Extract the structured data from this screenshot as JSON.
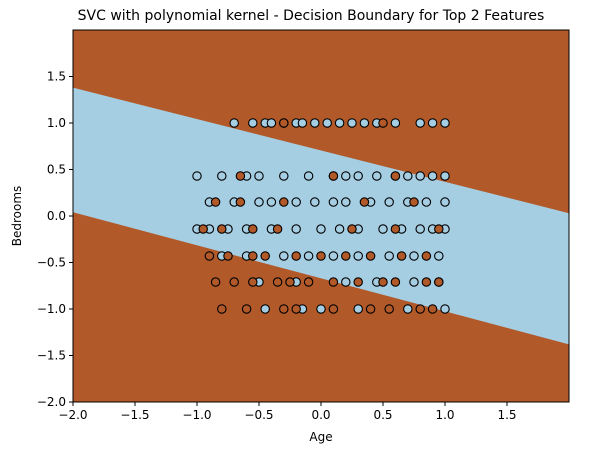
{
  "chart_data": {
    "type": "scatter",
    "title": "SVC with polynomial kernel - Decision Boundary for Top 2 Features",
    "xlabel": "Age",
    "ylabel": "Bedrooms",
    "xlim": [
      -2.0,
      2.0
    ],
    "ylim": [
      -2.0,
      2.0
    ],
    "x_ticks": [
      -2.0,
      -1.5,
      -1.0,
      -0.5,
      0.0,
      0.5,
      1.0,
      1.5
    ],
    "x_tick_labels": [
      "−2.0",
      "−1.5",
      "−1.0",
      "−0.5",
      "0.0",
      "0.5",
      "1.0",
      "1.5"
    ],
    "y_ticks": [
      -2.0,
      -1.5,
      -1.0,
      -0.5,
      0.0,
      0.5,
      1.0,
      1.5
    ],
    "y_tick_labels": [
      "−2.0",
      "−1.5",
      "−1.0",
      "−0.5",
      "0.0",
      "0.5",
      "1.0",
      "1.5"
    ],
    "grid": false,
    "decision_regions": {
      "outer_class_color": "#b15928",
      "inner_class_color": "#a6cee3",
      "upper_boundary": {
        "at_x_min": 1.38,
        "at_x_max": 0.03
      },
      "lower_boundary": {
        "at_x_min": 0.04,
        "at_x_max": -1.38
      }
    },
    "series": [
      {
        "color": "#a6cee3",
        "rows": [
          {
            "y": 1.0,
            "x": [
              -0.7,
              -0.55,
              -0.45,
              -0.4,
              -0.3,
              -0.2,
              -0.15,
              -0.05,
              0.05,
              0.15,
              0.25,
              0.35,
              0.45,
              0.6,
              0.8,
              0.9,
              1.0
            ]
          },
          {
            "y": 0.43,
            "x": [
              -1.0,
              -0.8,
              -0.6,
              -0.5,
              -0.3,
              -0.1,
              0.1,
              0.2,
              0.3,
              0.45,
              0.6,
              0.7,
              0.8,
              0.9,
              1.0
            ]
          },
          {
            "y": 0.15,
            "x": [
              -0.9,
              -0.7,
              -0.5,
              -0.4,
              -0.2,
              -0.05,
              0.1,
              0.2,
              0.4,
              0.55,
              0.7,
              0.85,
              1.0
            ]
          },
          {
            "y": -0.14,
            "x": [
              -1.0,
              -0.9,
              -0.75,
              -0.6,
              -0.4,
              -0.2,
              0.0,
              0.15,
              0.3,
              0.5,
              0.65,
              0.8,
              0.9,
              1.0
            ]
          },
          {
            "y": -0.43,
            "x": [
              -0.8,
              -0.6,
              -0.3,
              -0.1,
              0.1,
              0.3,
              0.55,
              0.75,
              0.95
            ]
          },
          {
            "y": -0.71,
            "x": [
              -0.5,
              -0.2,
              0.2,
              0.45,
              0.75,
              0.95
            ]
          },
          {
            "y": -1.0,
            "x": [
              -0.45,
              -0.15,
              0.0,
              0.3,
              0.7,
              1.0
            ]
          }
        ]
      },
      {
        "color": "#b15928",
        "rows": [
          {
            "y": 1.0,
            "x": [
              -0.3,
              0.5
            ]
          },
          {
            "y": 0.43,
            "x": [
              -0.65,
              0.1,
              0.6
            ]
          },
          {
            "y": 0.15,
            "x": [
              -0.85,
              -0.65,
              -0.3,
              0.35,
              0.75
            ]
          },
          {
            "y": -0.14,
            "x": [
              -0.95,
              -0.8,
              -0.55,
              -0.35,
              0.25,
              0.6,
              0.95
            ]
          },
          {
            "y": -0.43,
            "x": [
              -0.9,
              -0.75,
              -0.55,
              -0.45,
              -0.2,
              0.0,
              0.2,
              0.4,
              0.65,
              0.85
            ]
          },
          {
            "y": -0.71,
            "x": [
              -0.85,
              -0.7,
              -0.55,
              -0.35,
              -0.25,
              -0.1,
              0.1,
              0.3,
              0.5,
              0.6,
              0.85,
              0.95
            ]
          },
          {
            "y": -1.0,
            "x": [
              -0.8,
              -0.6,
              -0.3,
              -0.2,
              0.1,
              0.4,
              0.55,
              0.8,
              0.9
            ]
          }
        ]
      }
    ]
  }
}
